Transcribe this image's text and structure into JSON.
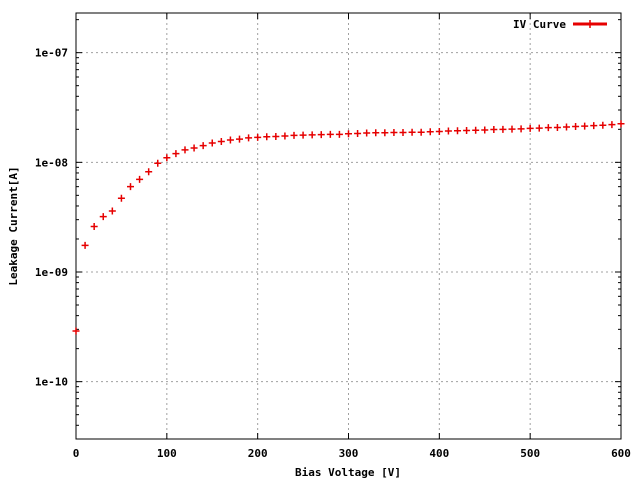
{
  "chart_data": {
    "type": "scatter",
    "title": "",
    "xlabel": "Bias Voltage [V]",
    "ylabel": "Leakage Current[A]",
    "xlim": [
      0,
      600
    ],
    "ylim": [
      3e-11,
      2.3e-07
    ],
    "yscale": "log",
    "grid": true,
    "legend_position": "top-right",
    "x_ticks": [
      {
        "value": 0,
        "label": "0"
      },
      {
        "value": 100,
        "label": "100"
      },
      {
        "value": 200,
        "label": "200"
      },
      {
        "value": 300,
        "label": "300"
      },
      {
        "value": 400,
        "label": "400"
      },
      {
        "value": 500,
        "label": "500"
      },
      {
        "value": 600,
        "label": "600"
      }
    ],
    "y_ticks": [
      {
        "value": 1e-10,
        "label": "1e-10"
      },
      {
        "value": 1e-09,
        "label": "1e-09"
      },
      {
        "value": 1e-08,
        "label": "1e-08"
      },
      {
        "value": 1e-07,
        "label": "1e-07"
      }
    ],
    "series": [
      {
        "name": "IV Curve",
        "color": "#e60000",
        "marker": "plus",
        "x": [
          0,
          10,
          20,
          30,
          40,
          50,
          60,
          70,
          80,
          90,
          100,
          110,
          120,
          130,
          140,
          150,
          160,
          170,
          180,
          190,
          200,
          210,
          220,
          230,
          240,
          250,
          260,
          270,
          280,
          290,
          300,
          310,
          320,
          330,
          340,
          350,
          360,
          370,
          380,
          390,
          400,
          410,
          420,
          430,
          440,
          450,
          460,
          470,
          480,
          490,
          500,
          510,
          520,
          530,
          540,
          550,
          560,
          570,
          580,
          590,
          600
        ],
        "y": [
          2.9e-10,
          1.75e-09,
          2.6e-09,
          3.2e-09,
          3.6e-09,
          4.7e-09,
          6e-09,
          7e-09,
          8.2e-09,
          9.8e-09,
          1.1e-08,
          1.2e-08,
          1.3e-08,
          1.35e-08,
          1.42e-08,
          1.5e-08,
          1.55e-08,
          1.6e-08,
          1.63e-08,
          1.67e-08,
          1.69e-08,
          1.71e-08,
          1.72e-08,
          1.74e-08,
          1.76e-08,
          1.77e-08,
          1.78e-08,
          1.79e-08,
          1.8e-08,
          1.8e-08,
          1.82e-08,
          1.83e-08,
          1.85e-08,
          1.86e-08,
          1.86e-08,
          1.87e-08,
          1.87e-08,
          1.88e-08,
          1.88e-08,
          1.9e-08,
          1.91e-08,
          1.93e-08,
          1.94e-08,
          1.95e-08,
          1.96e-08,
          1.97e-08,
          1.99e-08,
          2e-08,
          2.01e-08,
          2.02e-08,
          2.04e-08,
          2.05e-08,
          2.07e-08,
          2.08e-08,
          2.1e-08,
          2.12e-08,
          2.14e-08,
          2.16e-08,
          2.18e-08,
          2.21e-08,
          2.25e-08
        ]
      }
    ]
  }
}
